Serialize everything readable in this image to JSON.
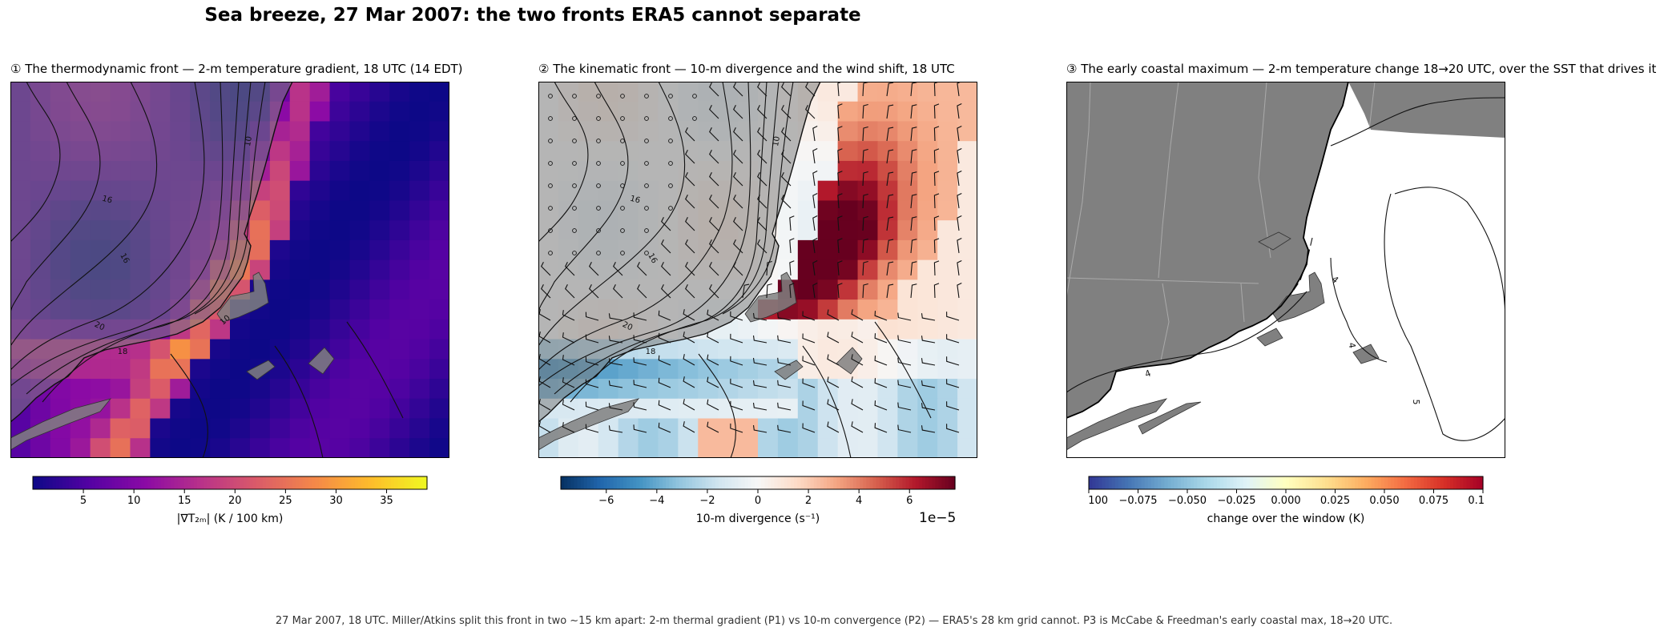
{
  "title": "Sea breeze, 27 Mar 2007: the two fronts ERA5 cannot separate",
  "footer": "27 Mar 2007, 18 UTC. Miller/Atkins split this front in two ~15 km apart: 2-m thermal gradient (P1) vs 10-m convergence (P2) — ERA5's 28 km grid cannot. P3 is McCabe & Freedman's early coastal max, 18→20 UTC.",
  "chart_data": [
    {
      "type": "heatmap",
      "title": "① The thermodynamic front — 2-m temperature gradient, 18 UTC (14 EDT)",
      "colormap": "plasma",
      "colorbar": {
        "label": "|∇T₂ₘ| (K / 100 km)",
        "range": [
          0,
          39
        ],
        "ticks": [
          5,
          10,
          15,
          20,
          25,
          30,
          35
        ]
      },
      "contour_labels": [
        "10",
        "16",
        "16",
        "20",
        "18",
        "10"
      ],
      "land_color": "#808080"
    },
    {
      "type": "heatmap",
      "title": "② The kinematic front — 10-m divergence and the wind shift, 18 UTC",
      "colormap": "RdBu_r",
      "colorbar": {
        "label": "10-m divergence (s⁻¹)",
        "range": [
          -7.8,
          7.8
        ],
        "ticks": [
          -6,
          -4,
          -2,
          0,
          2,
          4,
          6
        ],
        "tick_labels": [
          "−6",
          "−4",
          "−2",
          "0",
          "2",
          "4",
          "6"
        ],
        "scale_factor": "1e−5"
      },
      "contour_labels": [
        "10",
        "16",
        "16",
        "20",
        "18"
      ],
      "wind_barbs": true
    },
    {
      "type": "heatmap",
      "title": "③ The early coastal maximum — 2-m temperature change 18→20 UTC, over the SST that drives it",
      "colormap": "RdYlBu_r",
      "colorbar": {
        "label": "change over the window (K)",
        "range": [
          -0.1,
          0.1
        ],
        "ticks": [
          -0.1,
          -0.075,
          -0.05,
          -0.025,
          0,
          0.025,
          0.05,
          0.075,
          0.1
        ],
        "tick_labels": [
          "−0.100",
          "−0.075",
          "−0.050",
          "−0.025",
          "0.000",
          "0.025",
          "0.050",
          "0.075",
          "0.100"
        ]
      },
      "contour_labels": [
        "4",
        "4",
        "4",
        "5"
      ]
    }
  ]
}
